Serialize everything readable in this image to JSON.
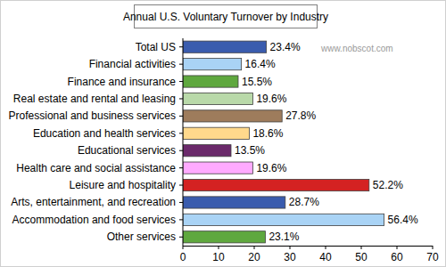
{
  "chart_data": {
    "type": "bar",
    "orientation": "horizontal",
    "title": "Annual U.S. Voluntary Turnover by Industry",
    "annotations": [
      "www.nobscot.com"
    ],
    "categories": [
      "Total US",
      "Financial activities",
      "Finance and insurance",
      "Real estate and rental and leasing",
      "Professional and business services",
      "Education and health services",
      "Educational services",
      "Health care and social assistance",
      "Leisure and hospitality",
      "Arts, entertainment, and recreation",
      "Accommodation and food services",
      "Other services"
    ],
    "values": [
      23.4,
      16.4,
      15.5,
      19.6,
      27.8,
      18.6,
      13.5,
      19.6,
      52.2,
      28.7,
      56.4,
      23.1
    ],
    "value_labels": [
      "23.4%",
      "16.4%",
      "15.5%",
      "19.6%",
      "27.8%",
      "18.6%",
      "13.5%",
      "19.6%",
      "52.2%",
      "28.7%",
      "56.4%",
      "23.1%"
    ],
    "colors": [
      "#3a5cae",
      "#a9d3f5",
      "#5fa83e",
      "#b9d9a9",
      "#9e7c5c",
      "#ffd98c",
      "#6b2a6b",
      "#ffaaff",
      "#d42222",
      "#3a5cae",
      "#a9d3f5",
      "#5fa83e"
    ],
    "xlim": [
      0,
      70
    ],
    "xticks": [
      0,
      10,
      20,
      30,
      40,
      50,
      60,
      70
    ],
    "grid": false,
    "data_labels": true
  }
}
